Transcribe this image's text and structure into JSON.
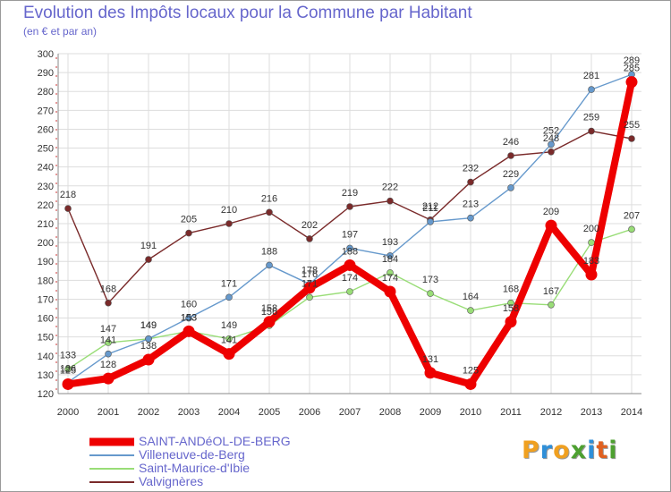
{
  "title": "Evolution des Impôts locaux pour la Commune par Habitant",
  "subtitle": "(en € et par an)",
  "logo": {
    "letters": [
      "P",
      "r",
      "o",
      "x",
      "i",
      "t",
      "i"
    ],
    "colors": [
      "#f0a020",
      "#2f8fd8",
      "#f0a020",
      "#4da030",
      "#2f8fd8",
      "#e06020",
      "#4da030"
    ]
  },
  "chart_data": {
    "type": "line",
    "title": "Evolution des Impôts locaux pour la Commune par Habitant",
    "subtitle": "(en € et par an)",
    "xlabel": "",
    "ylabel": "",
    "ylim": [
      120,
      300
    ],
    "ytick_step": 10,
    "grid": true,
    "legend_position": "bottom-left",
    "x": [
      "2000",
      "2001",
      "2002",
      "2003",
      "2004",
      "2005",
      "2006",
      "2007",
      "2008",
      "2009",
      "2010",
      "2011",
      "2012",
      "2013",
      "2014"
    ],
    "series": [
      {
        "name": "Valvignères",
        "color": "#7a2a2a",
        "thick": false,
        "values": [
          218,
          168,
          191,
          205,
          210,
          216,
          202,
          219,
          222,
          212,
          232,
          246,
          248,
          259,
          255
        ]
      },
      {
        "name": "Saint-Maurice-d'Ibie",
        "color": "#99dd77",
        "thick": false,
        "values": [
          133,
          147,
          149,
          153,
          149,
          156,
          171,
          174,
          184,
          173,
          164,
          168,
          167,
          200,
          207
        ]
      },
      {
        "name": "Villeneuve-de-Berg",
        "color": "#6699cc",
        "thick": false,
        "values": [
          126,
          141,
          149,
          160,
          171,
          188,
          178,
          197,
          193,
          211,
          213,
          229,
          252,
          281,
          289
        ]
      },
      {
        "name": "SAINT-ANDéOL-DE-BERG",
        "color": "#ee0000",
        "thick": true,
        "values": [
          125,
          128,
          138,
          153,
          141,
          158,
          176,
          188,
          174,
          131,
          125,
          158,
          209,
          183,
          285
        ]
      }
    ],
    "legend": [
      "SAINT-ANDéOL-DE-BERG",
      "Villeneuve-de-Berg",
      "Saint-Maurice-d'Ibie",
      "Valvignères"
    ]
  }
}
